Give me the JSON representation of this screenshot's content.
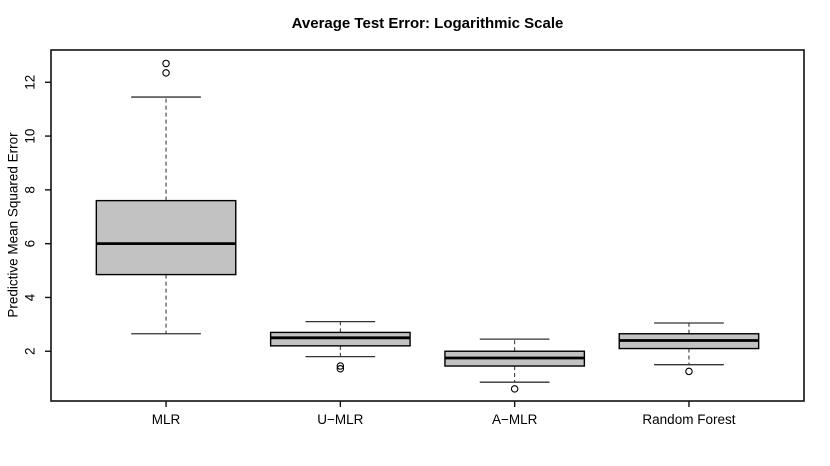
{
  "chart_data": {
    "type": "boxplot",
    "title": "Average Test Error: Logarithmic Scale",
    "xlabel": "",
    "ylabel": "Predictive Mean Squared Error",
    "categories": [
      "MLR",
      "U−MLR",
      "A−MLR",
      "Random Forest"
    ],
    "yticks": [
      2,
      4,
      6,
      8,
      10,
      12
    ],
    "ylim": [
      0.15,
      13.2
    ],
    "xlim": [
      0.34,
      4.66
    ],
    "grid": false,
    "legend": false,
    "box_width": 0.8,
    "staple_width": 0.4,
    "colors": {
      "background": "#ffffff",
      "box_fill": "#c2c2c2",
      "box_border": "#000000",
      "median": "#000000",
      "whisker": "#2a2a2a",
      "staple": "#333333",
      "outlier": "#000000",
      "frame": "#111111",
      "text": "#000000"
    },
    "series": [
      {
        "name": "MLR",
        "whisker_low": 2.65,
        "q1": 4.85,
        "median": 6.0,
        "q3": 7.6,
        "whisker_high": 11.45,
        "outliers": [
          12.35,
          12.7
        ]
      },
      {
        "name": "U−MLR",
        "whisker_low": 1.8,
        "q1": 2.2,
        "median": 2.5,
        "q3": 2.7,
        "whisker_high": 3.1,
        "outliers": [
          1.45,
          1.35
        ]
      },
      {
        "name": "A−MLR",
        "whisker_low": 0.85,
        "q1": 1.45,
        "median": 1.75,
        "q3": 2.0,
        "whisker_high": 2.45,
        "outliers": [
          0.6
        ]
      },
      {
        "name": "Random Forest",
        "whisker_low": 1.5,
        "q1": 2.1,
        "median": 2.4,
        "q3": 2.65,
        "whisker_high": 3.05,
        "outliers": [
          1.25
        ]
      }
    ]
  }
}
